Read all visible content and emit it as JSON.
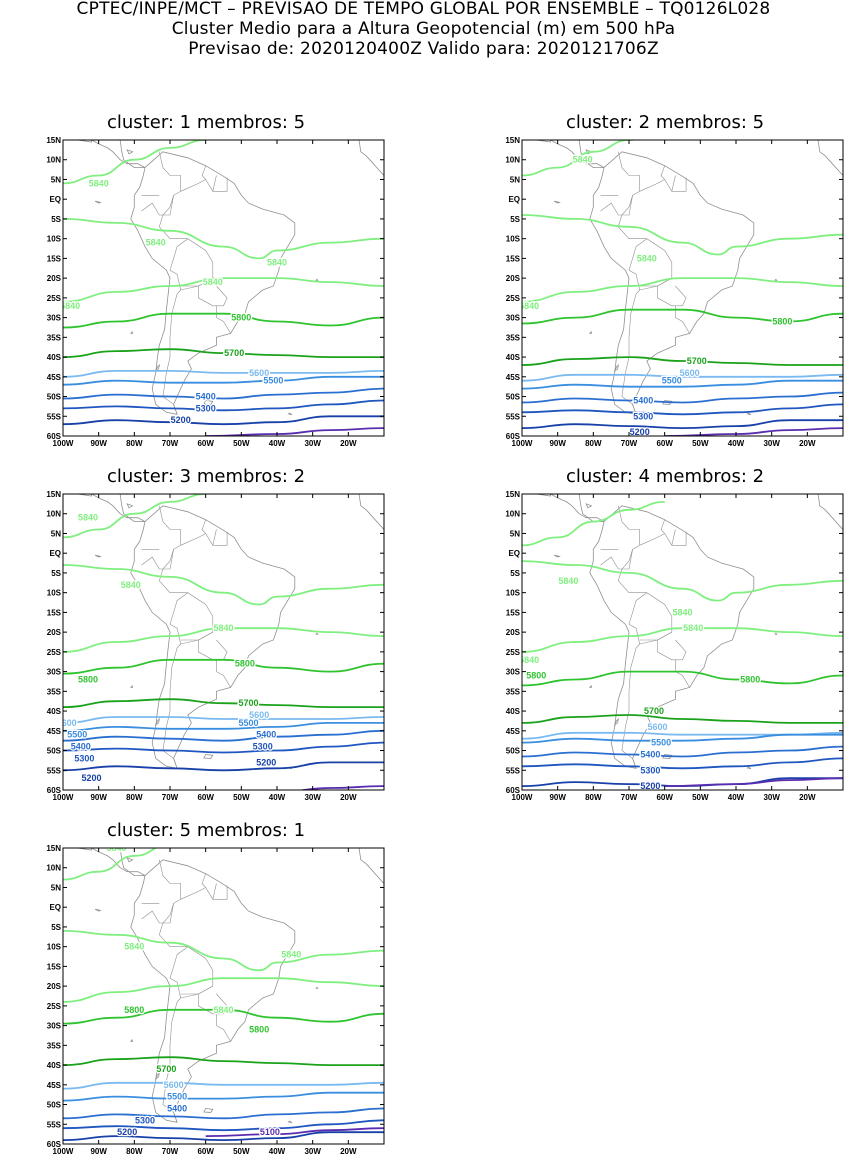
{
  "header": {
    "line1": "CPTEC/INPE/MCT – PREVISAO DE TEMPO GLOBAL POR ENSEMBLE – TQ0126L028",
    "line2": "Cluster Medio para a Altura Geopotencial (m) em 500 hPa",
    "line3": "Previsao de: 2020120400Z    Valido para: 2020121706Z"
  },
  "axes": {
    "lat_ticks": [
      "15N",
      "10N",
      "5N",
      "EQ",
      "5S",
      "10S",
      "15S",
      "20S",
      "25S",
      "30S",
      "35S",
      "40S",
      "45S",
      "50S",
      "55S",
      "60S"
    ],
    "lon_ticks": [
      "100W",
      "90W",
      "80W",
      "70W",
      "60W",
      "50W",
      "40W",
      "30W",
      "20W"
    ]
  },
  "colors": {
    "c5840": "#7fef7f",
    "c5800": "#2fc42f",
    "c5700": "#1aa21a",
    "c5600": "#7abaf0",
    "c5500": "#3a8ee0",
    "c5400": "#2a6fd0",
    "c5300": "#1f56c0",
    "c5200": "#1840a8",
    "c5100": "#5a2cb0",
    "land": "#909090"
  },
  "panels": [
    {
      "title": "cluster: 1   membros: 5",
      "labels": [
        {
          "text": "5840",
          "lon": -90,
          "lat": 4,
          "color": "c5840"
        },
        {
          "text": "5840",
          "lon": -74,
          "lat": -11,
          "color": "c5840"
        },
        {
          "text": "5840",
          "lon": -40,
          "lat": -16,
          "color": "c5840"
        },
        {
          "text": "5840",
          "lon": -58,
          "lat": -21,
          "color": "c5840"
        },
        {
          "text": "5840",
          "lon": -98,
          "lat": -27,
          "color": "c5840"
        },
        {
          "text": "5800",
          "lon": -50,
          "lat": -30,
          "color": "c5800"
        },
        {
          "text": "5700",
          "lon": -52,
          "lat": -39,
          "color": "c5700"
        },
        {
          "text": "5600",
          "lon": -45,
          "lat": -44,
          "color": "c5600"
        },
        {
          "text": "5500",
          "lon": -41,
          "lat": -46,
          "color": "c5500"
        },
        {
          "text": "5400",
          "lon": -60,
          "lat": -50,
          "color": "c5400"
        },
        {
          "text": "5300",
          "lon": -60,
          "lat": -53,
          "color": "c5300"
        },
        {
          "text": "5200",
          "lon": -67,
          "lat": -56,
          "color": "c5200"
        }
      ]
    },
    {
      "title": "cluster: 2   membros: 5",
      "labels": [
        {
          "text": "5840",
          "lon": -83,
          "lat": 10,
          "color": "c5840"
        },
        {
          "text": "5840",
          "lon": -65,
          "lat": -15,
          "color": "c5840"
        },
        {
          "text": "5840",
          "lon": -98,
          "lat": -27,
          "color": "c5840"
        },
        {
          "text": "5800",
          "lon": -27,
          "lat": -31,
          "color": "c5800"
        },
        {
          "text": "5700",
          "lon": -51,
          "lat": -41,
          "color": "c5700"
        },
        {
          "text": "5600",
          "lon": -53,
          "lat": -44,
          "color": "c5600"
        },
        {
          "text": "5500",
          "lon": -58,
          "lat": -46,
          "color": "c5500"
        },
        {
          "text": "5400",
          "lon": -66,
          "lat": -51,
          "color": "c5400"
        },
        {
          "text": "5300",
          "lon": -66,
          "lat": -55,
          "color": "c5300"
        },
        {
          "text": "5200",
          "lon": -67,
          "lat": -59,
          "color": "c5200"
        }
      ]
    },
    {
      "title": "cluster: 3   membros: 2",
      "labels": [
        {
          "text": "5840",
          "lon": -93,
          "lat": 9,
          "color": "c5840"
        },
        {
          "text": "5840",
          "lon": -81,
          "lat": -8,
          "color": "c5840"
        },
        {
          "text": "5840",
          "lon": -55,
          "lat": -19,
          "color": "c5840"
        },
        {
          "text": "5800",
          "lon": -49,
          "lat": -28,
          "color": "c5800"
        },
        {
          "text": "5800",
          "lon": -93,
          "lat": -32,
          "color": "c5800"
        },
        {
          "text": "5700",
          "lon": -48,
          "lat": -38,
          "color": "c5700"
        },
        {
          "text": "5600",
          "lon": -99,
          "lat": -43,
          "color": "c5600"
        },
        {
          "text": "5600",
          "lon": -45,
          "lat": -41,
          "color": "c5600"
        },
        {
          "text": "5500",
          "lon": -96,
          "lat": -46,
          "color": "c5500"
        },
        {
          "text": "5500",
          "lon": -48,
          "lat": -43,
          "color": "c5500"
        },
        {
          "text": "5400",
          "lon": -43,
          "lat": -46,
          "color": "c5400"
        },
        {
          "text": "5400",
          "lon": -95,
          "lat": -49,
          "color": "c5400"
        },
        {
          "text": "5300",
          "lon": -44,
          "lat": -49,
          "color": "c5300"
        },
        {
          "text": "5300",
          "lon": -94,
          "lat": -52,
          "color": "c5300"
        },
        {
          "text": "5200",
          "lon": -43,
          "lat": -53,
          "color": "c5200"
        },
        {
          "text": "5200",
          "lon": -92,
          "lat": -57,
          "color": "c5200"
        }
      ]
    },
    {
      "title": "cluster: 4   membros: 2",
      "labels": [
        {
          "text": "5840",
          "lon": -87,
          "lat": -7,
          "color": "c5840"
        },
        {
          "text": "5840",
          "lon": -55,
          "lat": -15,
          "color": "c5840"
        },
        {
          "text": "5840",
          "lon": -52,
          "lat": -19,
          "color": "c5840"
        },
        {
          "text": "5840",
          "lon": -98,
          "lat": -27,
          "color": "c5840"
        },
        {
          "text": "5800",
          "lon": -96,
          "lat": -31,
          "color": "c5800"
        },
        {
          "text": "5800",
          "lon": -36,
          "lat": -32,
          "color": "c5800"
        },
        {
          "text": "5700",
          "lon": -63,
          "lat": -40,
          "color": "c5700"
        },
        {
          "text": "5600",
          "lon": -62,
          "lat": -44,
          "color": "c5600"
        },
        {
          "text": "5500",
          "lon": -61,
          "lat": -48,
          "color": "c5500"
        },
        {
          "text": "5400",
          "lon": -64,
          "lat": -51,
          "color": "c5400"
        },
        {
          "text": "5300",
          "lon": -64,
          "lat": -55,
          "color": "c5300"
        },
        {
          "text": "5200",
          "lon": -64,
          "lat": -59,
          "color": "c5200"
        }
      ]
    },
    {
      "title": "cluster: 5   membros: 1",
      "labels": [
        {
          "text": "5840",
          "lon": -85,
          "lat": 15,
          "color": "c5840"
        },
        {
          "text": "5840",
          "lon": -80,
          "lat": -10,
          "color": "c5840"
        },
        {
          "text": "5840",
          "lon": -36,
          "lat": -12,
          "color": "c5840"
        },
        {
          "text": "5840",
          "lon": -55,
          "lat": -26,
          "color": "c5840"
        },
        {
          "text": "5800",
          "lon": -80,
          "lat": -26,
          "color": "c5800"
        },
        {
          "text": "5800",
          "lon": -45,
          "lat": -31,
          "color": "c5800"
        },
        {
          "text": "5700",
          "lon": -71,
          "lat": -41,
          "color": "c5700"
        },
        {
          "text": "5600",
          "lon": -69,
          "lat": -45,
          "color": "c5600"
        },
        {
          "text": "5500",
          "lon": -68,
          "lat": -48,
          "color": "c5500"
        },
        {
          "text": "5400",
          "lon": -68,
          "lat": -51,
          "color": "c5400"
        },
        {
          "text": "5300",
          "lon": -77,
          "lat": -54,
          "color": "c5300"
        },
        {
          "text": "5200",
          "lon": -82,
          "lat": -57,
          "color": "c5200"
        },
        {
          "text": "5100",
          "lon": -42,
          "lat": -57,
          "color": "c5100"
        }
      ]
    }
  ]
}
